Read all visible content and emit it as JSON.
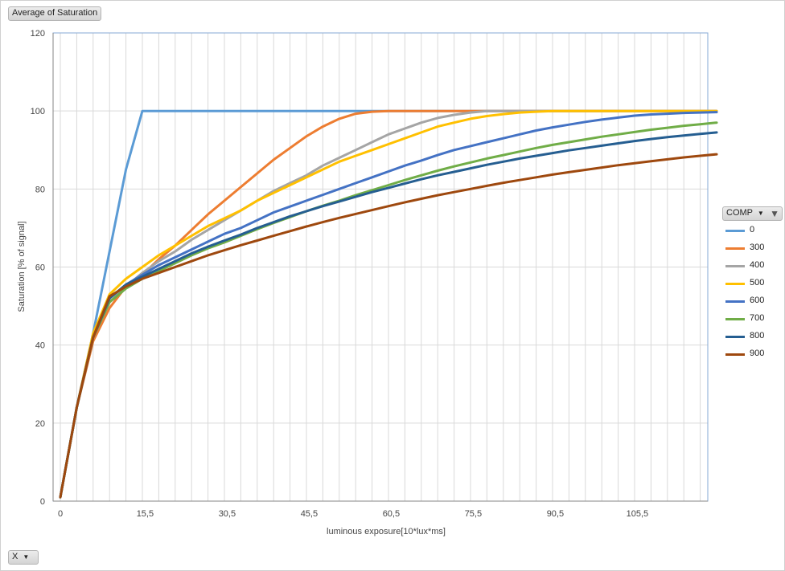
{
  "value_field": {
    "label": "Average of Saturation"
  },
  "x_field": {
    "label": "X",
    "icon": "chevron-down-icon"
  },
  "legend": {
    "title": "COMP",
    "filter_icon": "filter-icon",
    "dropdown_icon": "chevron-down-icon"
  },
  "chart_data": {
    "type": "line",
    "xlabel": "luminous exposure[10*lux*ms]",
    "ylabel": "Saturation [% of signal]",
    "xlim": [
      0,
      122
    ],
    "ylim": [
      0,
      120
    ],
    "x_tick_labels": [
      "0",
      "15,5",
      "30,5",
      "45,5",
      "60,5",
      "75,5",
      "90,5",
      "105,5"
    ],
    "y_tick_labels": [
      "0",
      "20",
      "40",
      "60",
      "80",
      "100",
      "120"
    ],
    "grid": true,
    "legend_position": "right",
    "series": [
      {
        "name": "0",
        "color": "#5b9bd5",
        "points": [
          [
            0,
            1
          ],
          [
            3,
            24
          ],
          [
            6,
            43
          ],
          [
            9,
            64
          ],
          [
            12,
            85
          ],
          [
            15,
            100
          ],
          [
            18,
            100
          ],
          [
            25,
            100
          ],
          [
            40,
            100
          ],
          [
            60,
            100
          ],
          [
            80,
            100
          ],
          [
            100,
            100
          ],
          [
            120,
            100
          ]
        ]
      },
      {
        "name": "300",
        "color": "#ed7d31",
        "points": [
          [
            0,
            1
          ],
          [
            3,
            24
          ],
          [
            6,
            41
          ],
          [
            9,
            49.5
          ],
          [
            12,
            55
          ],
          [
            15,
            58
          ],
          [
            18,
            62
          ],
          [
            21,
            65.5
          ],
          [
            24,
            69.5
          ],
          [
            27,
            73.5
          ],
          [
            30,
            77
          ],
          [
            33,
            80.5
          ],
          [
            36,
            84
          ],
          [
            39,
            87.5
          ],
          [
            42,
            90.5
          ],
          [
            45,
            93.5
          ],
          [
            48,
            96
          ],
          [
            51,
            98
          ],
          [
            54,
            99.3
          ],
          [
            57,
            99.8
          ],
          [
            60,
            100
          ],
          [
            70,
            100
          ],
          [
            90,
            100
          ],
          [
            120,
            100
          ]
        ]
      },
      {
        "name": "400",
        "color": "#a5a5a5",
        "points": [
          [
            0,
            1
          ],
          [
            3,
            24
          ],
          [
            6,
            42
          ],
          [
            9,
            51
          ],
          [
            12,
            55
          ],
          [
            15,
            58.5
          ],
          [
            18,
            61.5
          ],
          [
            21,
            64
          ],
          [
            24,
            67
          ],
          [
            27,
            69.5
          ],
          [
            30,
            72
          ],
          [
            33,
            74.5
          ],
          [
            36,
            77
          ],
          [
            39,
            79.5
          ],
          [
            42,
            81.5
          ],
          [
            45,
            83.5
          ],
          [
            48,
            86
          ],
          [
            51,
            88
          ],
          [
            54,
            90
          ],
          [
            57,
            92
          ],
          [
            60,
            94
          ],
          [
            63,
            95.5
          ],
          [
            66,
            97
          ],
          [
            69,
            98.2
          ],
          [
            72,
            99
          ],
          [
            75,
            99.6
          ],
          [
            78,
            100
          ],
          [
            90,
            100
          ],
          [
            120,
            100
          ]
        ]
      },
      {
        "name": "500",
        "color": "#ffc000",
        "points": [
          [
            0,
            1
          ],
          [
            3,
            24
          ],
          [
            6,
            43
          ],
          [
            9,
            53
          ],
          [
            12,
            57
          ],
          [
            15,
            60
          ],
          [
            18,
            63
          ],
          [
            21,
            65.5
          ],
          [
            24,
            68
          ],
          [
            27,
            70.5
          ],
          [
            30,
            72.5
          ],
          [
            33,
            74.5
          ],
          [
            36,
            77
          ],
          [
            39,
            79
          ],
          [
            42,
            81
          ],
          [
            45,
            83
          ],
          [
            48,
            85
          ],
          [
            51,
            87
          ],
          [
            54,
            88.5
          ],
          [
            57,
            90
          ],
          [
            60,
            91.5
          ],
          [
            63,
            93
          ],
          [
            66,
            94.5
          ],
          [
            69,
            96
          ],
          [
            72,
            97
          ],
          [
            75,
            98
          ],
          [
            78,
            98.7
          ],
          [
            81,
            99.2
          ],
          [
            84,
            99.6
          ],
          [
            87,
            99.8
          ],
          [
            90,
            100
          ],
          [
            120,
            100
          ]
        ]
      },
      {
        "name": "600",
        "color": "#4472c4",
        "points": [
          [
            0,
            1
          ],
          [
            3,
            24
          ],
          [
            6,
            42
          ],
          [
            9,
            52
          ],
          [
            12,
            55.5
          ],
          [
            15,
            58
          ],
          [
            18,
            60.5
          ],
          [
            21,
            62.5
          ],
          [
            24,
            64.5
          ],
          [
            27,
            66.5
          ],
          [
            30,
            68.5
          ],
          [
            33,
            70
          ],
          [
            36,
            72
          ],
          [
            39,
            74
          ],
          [
            42,
            75.5
          ],
          [
            45,
            77
          ],
          [
            48,
            78.5
          ],
          [
            51,
            80
          ],
          [
            54,
            81.5
          ],
          [
            57,
            83
          ],
          [
            60,
            84.5
          ],
          [
            63,
            86
          ],
          [
            66,
            87.3
          ],
          [
            69,
            88.7
          ],
          [
            72,
            90
          ],
          [
            75,
            91
          ],
          [
            78,
            92
          ],
          [
            81,
            93
          ],
          [
            84,
            94
          ],
          [
            87,
            95
          ],
          [
            90,
            95.8
          ],
          [
            93,
            96.5
          ],
          [
            96,
            97.2
          ],
          [
            99,
            97.8
          ],
          [
            102,
            98.3
          ],
          [
            105,
            98.8
          ],
          [
            108,
            99.1
          ],
          [
            111,
            99.3
          ],
          [
            114,
            99.5
          ],
          [
            117,
            99.6
          ],
          [
            120,
            99.7
          ]
        ]
      },
      {
        "name": "700",
        "color": "#70ad47",
        "points": [
          [
            0,
            1
          ],
          [
            3,
            24
          ],
          [
            6,
            42
          ],
          [
            9,
            51
          ],
          [
            12,
            54.5
          ],
          [
            15,
            57
          ],
          [
            18,
            59
          ],
          [
            21,
            61
          ],
          [
            24,
            63
          ],
          [
            27,
            64.8
          ],
          [
            30,
            66.3
          ],
          [
            33,
            68
          ],
          [
            36,
            69.7
          ],
          [
            39,
            71.3
          ],
          [
            42,
            72.8
          ],
          [
            45,
            74.3
          ],
          [
            48,
            75.7
          ],
          [
            51,
            77
          ],
          [
            54,
            78.4
          ],
          [
            57,
            79.7
          ],
          [
            60,
            81
          ],
          [
            63,
            82.3
          ],
          [
            66,
            83.5
          ],
          [
            69,
            84.7
          ],
          [
            72,
            85.8
          ],
          [
            75,
            86.8
          ],
          [
            78,
            87.8
          ],
          [
            81,
            88.7
          ],
          [
            84,
            89.6
          ],
          [
            87,
            90.5
          ],
          [
            90,
            91.3
          ],
          [
            93,
            92
          ],
          [
            96,
            92.7
          ],
          [
            99,
            93.4
          ],
          [
            102,
            94
          ],
          [
            105,
            94.6
          ],
          [
            108,
            95.2
          ],
          [
            111,
            95.7
          ],
          [
            114,
            96.2
          ],
          [
            117,
            96.6
          ],
          [
            120,
            97
          ]
        ]
      },
      {
        "name": "800",
        "color": "#255e91",
        "points": [
          [
            0,
            1
          ],
          [
            3,
            24
          ],
          [
            6,
            42
          ],
          [
            9,
            52
          ],
          [
            12,
            55.5
          ],
          [
            15,
            57.5
          ],
          [
            18,
            59.5
          ],
          [
            21,
            61.5
          ],
          [
            24,
            63.5
          ],
          [
            27,
            65.2
          ],
          [
            30,
            66.8
          ],
          [
            33,
            68.3
          ],
          [
            36,
            70
          ],
          [
            39,
            71.5
          ],
          [
            42,
            73
          ],
          [
            45,
            74.3
          ],
          [
            48,
            75.6
          ],
          [
            51,
            76.8
          ],
          [
            54,
            78
          ],
          [
            57,
            79.2
          ],
          [
            60,
            80.3
          ],
          [
            63,
            81.4
          ],
          [
            66,
            82.5
          ],
          [
            69,
            83.5
          ],
          [
            72,
            84.4
          ],
          [
            75,
            85.3
          ],
          [
            78,
            86.2
          ],
          [
            81,
            87
          ],
          [
            84,
            87.8
          ],
          [
            87,
            88.5
          ],
          [
            90,
            89.2
          ],
          [
            93,
            89.9
          ],
          [
            96,
            90.5
          ],
          [
            99,
            91.1
          ],
          [
            102,
            91.7
          ],
          [
            105,
            92.3
          ],
          [
            108,
            92.8
          ],
          [
            111,
            93.3
          ],
          [
            114,
            93.7
          ],
          [
            117,
            94.1
          ],
          [
            120,
            94.5
          ]
        ]
      },
      {
        "name": "900",
        "color": "#9e480e",
        "points": [
          [
            0,
            1
          ],
          [
            3,
            24
          ],
          [
            6,
            42
          ],
          [
            9,
            52.5
          ],
          [
            12,
            55
          ],
          [
            15,
            57
          ],
          [
            18,
            58.5
          ],
          [
            21,
            60
          ],
          [
            24,
            61.5
          ],
          [
            27,
            63
          ],
          [
            30,
            64.3
          ],
          [
            33,
            65.6
          ],
          [
            36,
            66.8
          ],
          [
            39,
            68
          ],
          [
            42,
            69.2
          ],
          [
            45,
            70.4
          ],
          [
            48,
            71.5
          ],
          [
            51,
            72.6
          ],
          [
            54,
            73.6
          ],
          [
            57,
            74.6
          ],
          [
            60,
            75.6
          ],
          [
            63,
            76.6
          ],
          [
            66,
            77.5
          ],
          [
            69,
            78.4
          ],
          [
            72,
            79.2
          ],
          [
            75,
            80
          ],
          [
            78,
            80.8
          ],
          [
            81,
            81.6
          ],
          [
            84,
            82.3
          ],
          [
            87,
            83
          ],
          [
            90,
            83.7
          ],
          [
            93,
            84.3
          ],
          [
            96,
            84.9
          ],
          [
            99,
            85.5
          ],
          [
            102,
            86.1
          ],
          [
            105,
            86.6
          ],
          [
            108,
            87.1
          ],
          [
            111,
            87.6
          ],
          [
            114,
            88.1
          ],
          [
            117,
            88.5
          ],
          [
            120,
            88.9
          ]
        ]
      }
    ]
  }
}
